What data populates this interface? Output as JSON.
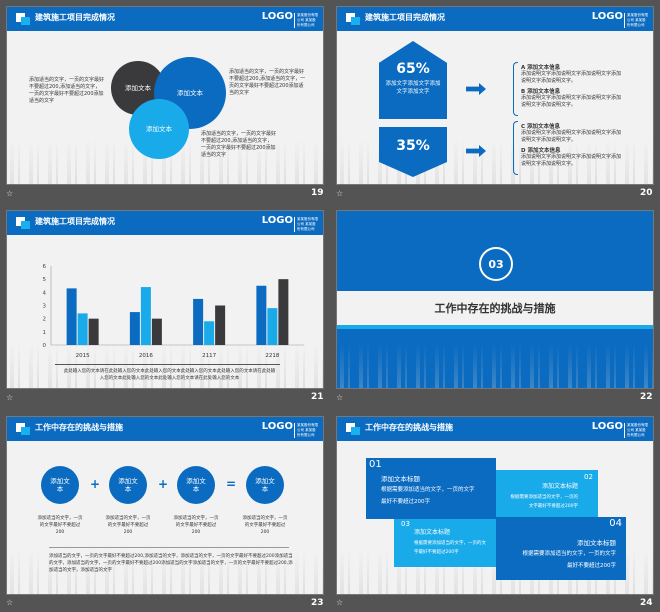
{
  "header": {
    "logo": "LOGO",
    "company": "某某股份有限公司 某某股份有限公司"
  },
  "slides": [
    {
      "number": "19",
      "title": "建筑施工项目完成情况",
      "circles": [
        "添加文本",
        "添加文本",
        "添加文本"
      ],
      "texts": [
        "添加适当的文字，一页的文字最好不要超过200,添加适当的文字，一页的文字最好不要超过200添加适当的文字",
        "添加适当的文字，一页的文字最好不要超过200,添加适当的文字，一页的文字最好不要超过200添加适当的文字",
        "添加适当的文字，一页的文字最好不要超过200,添加适当的文字，一页的文字最好不要超过200添加适当的文字"
      ]
    },
    {
      "number": "20",
      "title": "建筑施工项目完成情况",
      "top_percent": "65%",
      "top_text": "添加文字添加文字添加文字添加文字",
      "bottom_percent": "35%",
      "items": [
        {
          "title": "A  添加文本信息",
          "text": "添加说明文字添加说明文字添加说明文字添加说明文字添加说明文字。"
        },
        {
          "title": "B  添加文本信息",
          "text": "添加说明文字添加说明文字添加说明文字添加说明文字添加说明文字。"
        },
        {
          "title": "C  添加文本信息",
          "text": "添加说明文字添加说明文字添加说明文字添加说明文字添加说明文字。"
        },
        {
          "title": "D  添加文本信息",
          "text": "添加说明文字添加说明文字添加说明文字添加说明文字添加说明文字。"
        }
      ]
    },
    {
      "number": "21",
      "title": "建筑施工项目完成情况",
      "caption": "此处输入您的文本请在此处输入您的文本此处输入您的文本此处输入您的文本此处输入您的文本请在此处输入您的文本此处输入您的文本此处输入您的文本请在此处输入您的文本"
    },
    {
      "number": "22",
      "section_number": "03",
      "section_title": "工作中存在的挑战与措施"
    },
    {
      "number": "23",
      "title": "工作中存在的挑战与措施",
      "circles": [
        "添加文本",
        "添加文本",
        "添加文本",
        "添加文本"
      ],
      "operators": [
        "+",
        "+",
        "="
      ],
      "circle_texts": [
        "添加适当的文字，一页的文字最好不要超过200",
        "添加适当的文字，一页的文字最好不要超过200",
        "添加适当的文字，一页的文字最好不要超过200",
        "添加适当的文字，一页的文字最好不要超过200"
      ],
      "paragraph": "添加适当的文字，一页的文字最好不要超过200,添加适当的文字，添加适当的文字，一页的文字最好不要超过200添加适当的文字，添加适当的文字，一页的文字最好不要超过200添加适当的文字添加适当的文字，一页的文字最好不要超过200,添加适当的文字，添加适当的文字"
    },
    {
      "number": "24",
      "title": "工作中存在的挑战与措施",
      "boxes": [
        {
          "num": "01",
          "title": "添加文本标题",
          "text": "根据需要添加适当的文字，一页的文字最好不要超过200字"
        },
        {
          "num": "02",
          "title": "添加文本标题",
          "text": "根据需要添加适当的文字，一页的文字最好不要超过200字"
        },
        {
          "num": "03",
          "title": "添加文本标题",
          "text": "根据需要添加适当的文字，一页的文字最好不要超过200字"
        },
        {
          "num": "04",
          "title": "添加文本标题",
          "text": "根据需要添加适当的文字，一页的文字最好不要超过200字"
        }
      ]
    }
  ],
  "chart_data": {
    "type": "bar",
    "categories": [
      "2015",
      "2016",
      "2117",
      "2218"
    ],
    "ylim": [
      0,
      6
    ],
    "yticks": [
      0,
      1,
      2,
      3,
      4,
      5,
      6
    ],
    "series": [
      {
        "values": [
          4.3,
          2.5,
          3.5,
          4.5
        ],
        "color": "#0a6bc1"
      },
      {
        "values": [
          2.4,
          4.4,
          1.8,
          2.8
        ],
        "color": "#19aaea"
      },
      {
        "values": [
          2.0,
          2.0,
          3.0,
          5.0
        ],
        "color": "#3a3a3c"
      }
    ]
  },
  "colors": {
    "primary": "#0a6bc1",
    "accent": "#19aaea",
    "dark": "#3a3a3c",
    "background": "#545454"
  }
}
